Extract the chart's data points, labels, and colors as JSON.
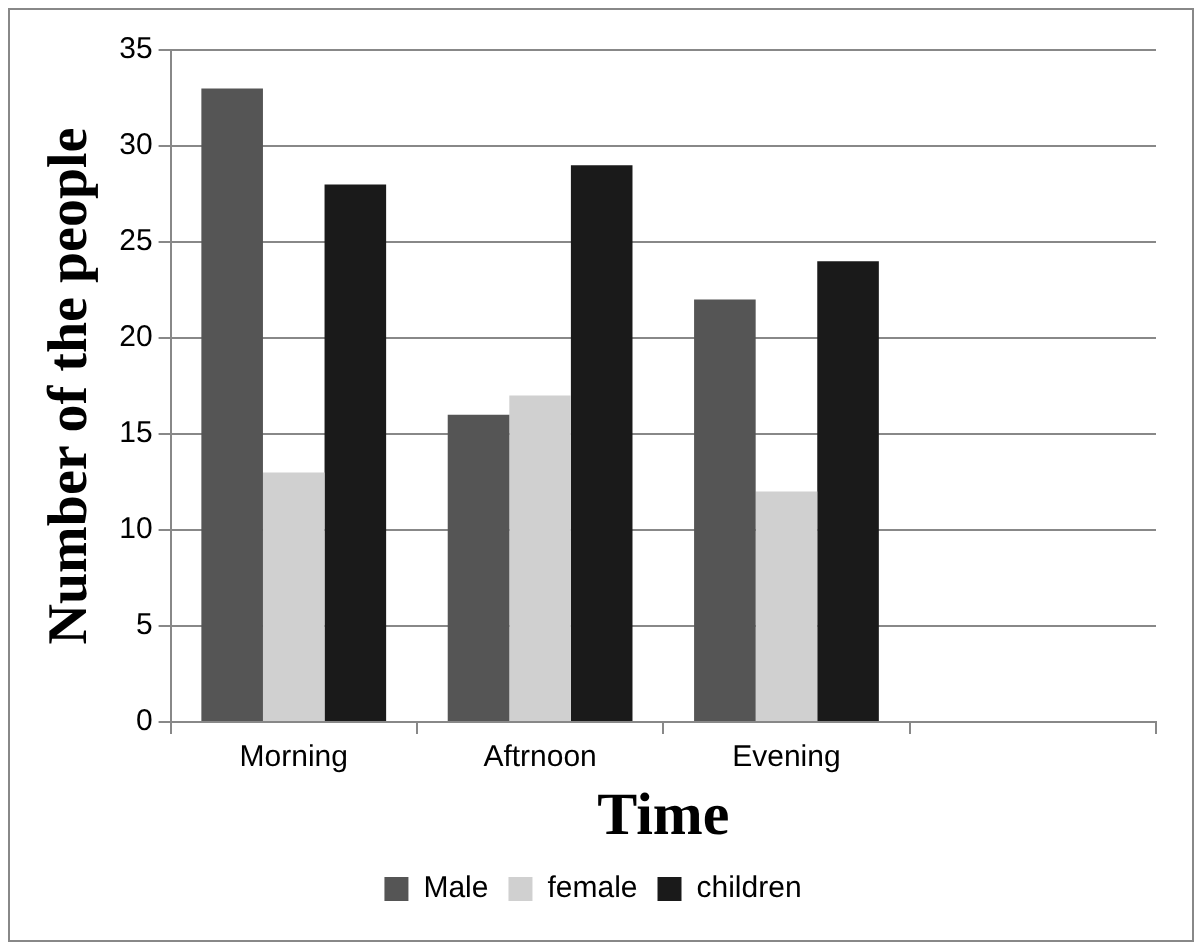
{
  "chart_data": {
    "type": "bar",
    "xlabel": "Time",
    "ylabel": "Number of the people",
    "categories": [
      "Morning",
      "Aftrnoon",
      "Evening",
      null
    ],
    "series": [
      {
        "name": "Male",
        "color": "#555555",
        "values": [
          33,
          16,
          22,
          null
        ]
      },
      {
        "name": "female",
        "color": "#d0d0d0",
        "values": [
          13,
          17,
          12,
          null
        ]
      },
      {
        "name": "children",
        "color": "#1a1a1a",
        "values": [
          28,
          29,
          24,
          null
        ]
      }
    ],
    "ylim": [
      0,
      35
    ],
    "yticks": [
      0,
      5,
      10,
      15,
      20,
      25,
      30,
      35
    ],
    "grid": "y",
    "legend": "bottom"
  }
}
